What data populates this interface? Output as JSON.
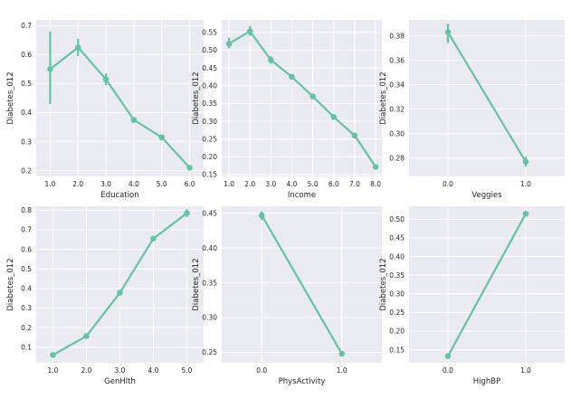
{
  "style": {
    "panel_background": "#eaeaf2",
    "grid_color": "#ffffff",
    "series_color": "#66c2a5",
    "text_color": "#262626"
  },
  "chart_data": [
    {
      "type": "line",
      "xlabel": "Education",
      "ylabel": "Diabetes_012",
      "x": [
        "1.0",
        "2.0",
        "3.0",
        "4.0",
        "5.0",
        "6.0"
      ],
      "values": [
        0.55,
        0.625,
        0.515,
        0.375,
        0.315,
        0.21
      ],
      "error_bars": [
        [
          0.43,
          0.68
        ],
        [
          0.595,
          0.655
        ],
        [
          0.495,
          0.535
        ],
        [
          0.368,
          0.382
        ],
        [
          0.308,
          0.322
        ],
        [
          0.204,
          0.216
        ]
      ],
      "ylim": [
        0.18,
        0.72
      ],
      "yticks": [
        "0.2",
        "0.3",
        "0.4",
        "0.5",
        "0.6",
        "0.7"
      ],
      "grid": true
    },
    {
      "type": "line",
      "xlabel": "Income",
      "ylabel": "Diabetes_012",
      "x": [
        "1.0",
        "2.0",
        "3.0",
        "4.0",
        "5.0",
        "6.0",
        "7.0",
        "8.0"
      ],
      "values": [
        0.518,
        0.553,
        0.472,
        0.425,
        0.37,
        0.312,
        0.26,
        0.172
      ],
      "error_bars": [
        [
          0.505,
          0.535
        ],
        [
          0.54,
          0.568
        ],
        [
          0.462,
          0.483
        ],
        [
          0.417,
          0.432
        ],
        [
          0.364,
          0.377
        ],
        [
          0.306,
          0.318
        ],
        [
          0.255,
          0.265
        ],
        [
          0.168,
          0.176
        ]
      ],
      "ylim": [
        0.145,
        0.585
      ],
      "yticks": [
        "0.15",
        "0.20",
        "0.25",
        "0.30",
        "0.35",
        "0.40",
        "0.45",
        "0.50",
        "0.55"
      ],
      "grid": true
    },
    {
      "type": "line",
      "xlabel": "Veggies",
      "ylabel": "Diabetes_012",
      "x": [
        "0.0",
        "1.0"
      ],
      "values": [
        0.383,
        0.277
      ],
      "error_bars": [
        [
          0.374,
          0.39
        ],
        [
          0.273,
          0.281
        ]
      ],
      "ylim": [
        0.265,
        0.393
      ],
      "yticks": [
        "0.28",
        "0.30",
        "0.32",
        "0.34",
        "0.36",
        "0.38"
      ],
      "grid": true
    },
    {
      "type": "line",
      "xlabel": "GenHlth",
      "ylabel": "Diabetes_012",
      "x": [
        "1.0",
        "2.0",
        "3.0",
        "4.0",
        "5.0"
      ],
      "values": [
        0.06,
        0.157,
        0.378,
        0.655,
        0.785
      ],
      "error_bars": [
        [
          0.055,
          0.065
        ],
        [
          0.152,
          0.162
        ],
        [
          0.372,
          0.384
        ],
        [
          0.645,
          0.665
        ],
        [
          0.765,
          0.805
        ]
      ],
      "ylim": [
        0.02,
        0.82
      ],
      "yticks": [
        "0.1",
        "0.2",
        "0.3",
        "0.4",
        "0.5",
        "0.6",
        "0.7",
        "0.8"
      ],
      "grid": true
    },
    {
      "type": "line",
      "xlabel": "PhysActivity",
      "ylabel": "Diabetes_012",
      "x": [
        "0.0",
        "1.0"
      ],
      "values": [
        0.447,
        0.248
      ],
      "error_bars": [
        [
          0.44,
          0.453
        ],
        [
          0.245,
          0.251
        ]
      ],
      "ylim": [
        0.235,
        0.46
      ],
      "yticks": [
        "0.25",
        "0.30",
        "0.35",
        "0.40",
        "0.45"
      ],
      "grid": true
    },
    {
      "type": "line",
      "xlabel": "HighBP",
      "ylabel": "Diabetes_012",
      "x": [
        "0.0",
        "1.0"
      ],
      "values": [
        0.133,
        0.515
      ],
      "error_bars": [
        [
          0.129,
          0.137
        ],
        [
          0.51,
          0.52
        ]
      ],
      "ylim": [
        0.115,
        0.535
      ],
      "yticks": [
        "0.15",
        "0.20",
        "0.25",
        "0.30",
        "0.35",
        "0.40",
        "0.45",
        "0.50"
      ],
      "grid": true
    }
  ]
}
